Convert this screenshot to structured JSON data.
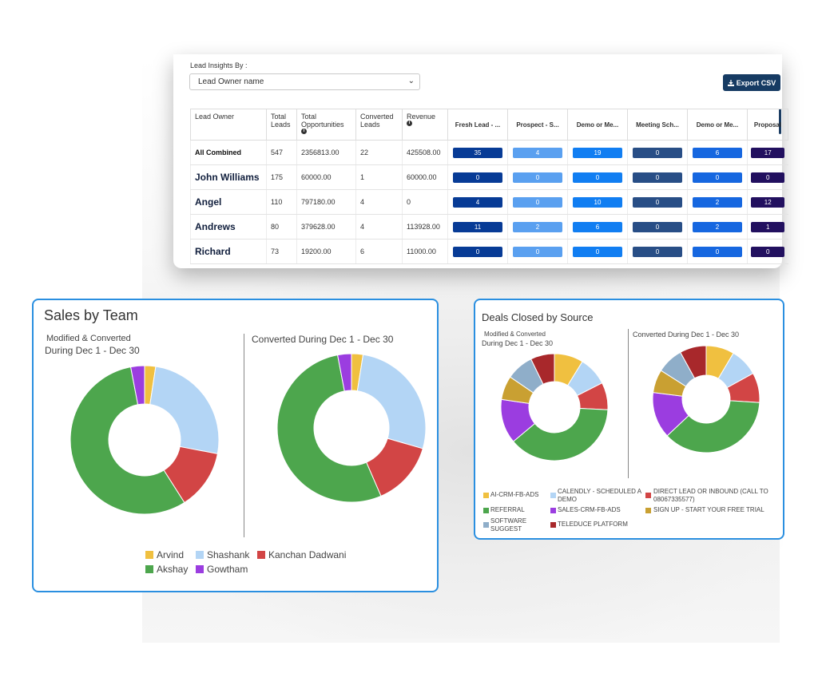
{
  "colors": {
    "navy": "#163b63",
    "accent_border": "#2a8fe0",
    "fresh": "#073b96",
    "prospect": "#5aa0f0",
    "demo": "#117ef2",
    "meeting": "#284e86",
    "demo2": "#1667e0",
    "proposal": "#22105f"
  },
  "header": {
    "insights_label": "Lead Insights By :",
    "select_value": "Lead Owner name",
    "export_label": "Export CSV",
    "export_icon": "download-icon"
  },
  "table": {
    "columns": [
      "Lead Owner",
      "Total Leads",
      "Total Opportunities",
      "Converted Leads",
      "Revenue",
      "Fresh Lead - ...",
      "Prospect - S...",
      "Demo or Me...",
      "Meeting Sch...",
      "Demo or Me...",
      "Proposal"
    ],
    "rows": [
      {
        "owner": "All Combined",
        "total_leads": "547",
        "total_opps": "2356813.00",
        "converted": "22",
        "revenue": "425508.00",
        "stages": [
          "35",
          "4",
          "19",
          "0",
          "6",
          "17"
        ]
      },
      {
        "owner": "John Williams",
        "total_leads": "175",
        "total_opps": "60000.00",
        "converted": "1",
        "revenue": "60000.00",
        "stages": [
          "0",
          "0",
          "0",
          "0",
          "0",
          "0"
        ]
      },
      {
        "owner": "Angel",
        "total_leads": "110",
        "total_opps": "797180.00",
        "converted": "4",
        "revenue": "0",
        "stages": [
          "4",
          "0",
          "10",
          "0",
          "2",
          "12"
        ]
      },
      {
        "owner": "Andrews",
        "total_leads": "80",
        "total_opps": "379628.00",
        "converted": "4",
        "revenue": "113928.00",
        "stages": [
          "11",
          "2",
          "6",
          "0",
          "2",
          "1"
        ]
      },
      {
        "owner": "Richard",
        "total_leads": "73",
        "total_opps": "19200.00",
        "converted": "6",
        "revenue": "11000.00",
        "stages": [
          "0",
          "0",
          "0",
          "0",
          "0",
          "0"
        ]
      }
    ]
  },
  "sales": {
    "title": "Sales by Team",
    "left_subtitle_1": "Modified & Converted",
    "left_subtitle_2": "During Dec 1 - Dec 30",
    "right_subtitle": "Converted During Dec 1 - Dec 30",
    "legend": [
      "Arvind",
      "Shashank",
      "Kanchan Dadwani",
      "Akshay",
      "Gowtham"
    ]
  },
  "deals": {
    "title": "Deals Closed by Source",
    "left_subtitle_1": "Modified & Converted",
    "left_subtitle_2": "During Dec 1 - Dec 30",
    "right_subtitle": "Converted During Dec 1 - Dec 30",
    "legend": [
      "AI-CRM-FB-ADS",
      "CALENDLY - SCHEDULED A",
      "DEMO",
      "DIRECT LEAD OR INBOUND (CALL TO",
      "08067335577)",
      "REFERRAL",
      "SALES-CRM-FB-ADS",
      "SIGN UP - START YOUR FREE TRIAL",
      "SOFTWARE",
      "SUGGEST",
      "TELEDUCE PLATFORM"
    ]
  },
  "chart_data": [
    {
      "type": "pie",
      "title": "Sales by Team",
      "subtitle": "Modified & Converted During Dec 1 - Dec 30",
      "categories": [
        "Arvind",
        "Shashank",
        "Kanchan Dadwani",
        "Akshay",
        "Gowtham"
      ],
      "values": [
        2.4,
        25.6,
        13,
        56,
        3
      ],
      "colors": [
        "#f0c040",
        "#b3d5f5",
        "#d24545",
        "#4da64d",
        "#9b3de0"
      ]
    },
    {
      "type": "pie",
      "title": "Sales by Team",
      "subtitle": "Converted During Dec 1 - Dec 30",
      "categories": [
        "Arvind",
        "Shashank",
        "Kanchan Dadwani",
        "Akshay",
        "Gowtham"
      ],
      "values": [
        2.5,
        27,
        14,
        53.5,
        3
      ],
      "colors": [
        "#f0c040",
        "#b3d5f5",
        "#d24545",
        "#4da64d",
        "#9b3de0"
      ]
    },
    {
      "type": "pie",
      "title": "Deals Closed by Source",
      "subtitle": "Modified & Converted During Dec 1 - Dec 30",
      "categories": [
        "AI-CRM-FB-ADS",
        "CALENDLY - SCHEDULED A DEMO",
        "DIRECT LEAD OR INBOUND (CALL TO 08067335577)",
        "REFERRAL",
        "SALES-CRM-FB-ADS",
        "SIGN UP - START YOUR FREE TRIAL",
        "SOFTWARE SUGGEST",
        "TELEDUCE PLATFORM"
      ],
      "values": [
        8.5,
        8.5,
        8,
        37,
        13,
        7,
        8,
        7
      ],
      "colors": [
        "#f0c040",
        "#b3d5f5",
        "#d24545",
        "#4da64d",
        "#9b3de0",
        "#c9a032",
        "#8faec9",
        "#a8282b"
      ]
    },
    {
      "type": "pie",
      "title": "Deals Closed by Source",
      "subtitle": "Converted During Dec 1 - Dec 30",
      "categories": [
        "AI-CRM-FB-ADS",
        "CALENDLY - SCHEDULED A DEMO",
        "DIRECT LEAD OR INBOUND (CALL TO 08067335577)",
        "REFERRAL",
        "SALES-CRM-FB-ADS",
        "SIGN UP - START YOUR FREE TRIAL",
        "SOFTWARE SUGGEST",
        "TELEDUCE PLATFORM"
      ],
      "values": [
        8.5,
        8.5,
        9,
        37,
        14,
        7,
        8,
        8
      ],
      "colors": [
        "#f0c040",
        "#b3d5f5",
        "#d24545",
        "#4da64d",
        "#9b3de0",
        "#c9a032",
        "#8faec9",
        "#a8282b"
      ]
    }
  ]
}
